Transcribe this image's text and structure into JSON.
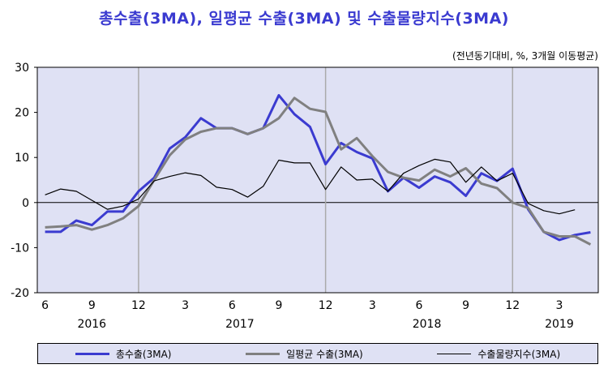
{
  "chart_data": {
    "type": "line",
    "title": "총수출(3MA), 일평균 수출(3MA) 및 수출물량지수(3MA)",
    "unit_note": "(전년동기대비, %, 3개월 이동평균)",
    "ylim": [
      -20,
      30
    ],
    "yticks": [
      "30",
      "20",
      "10",
      "0",
      "-10",
      "-20"
    ],
    "x_month_ticks": [
      "6",
      "9",
      "12",
      "3",
      "6",
      "9",
      "12",
      "3",
      "6",
      "9",
      "12",
      "3"
    ],
    "year_labels": [
      "2016",
      "2017",
      "2018",
      "2019"
    ],
    "x": [
      "2016-06",
      "2016-07",
      "2016-08",
      "2016-09",
      "2016-10",
      "2016-11",
      "2016-12",
      "2017-01",
      "2017-02",
      "2017-03",
      "2017-04",
      "2017-05",
      "2017-06",
      "2017-07",
      "2017-08",
      "2017-09",
      "2017-10",
      "2017-11",
      "2017-12",
      "2018-01",
      "2018-02",
      "2018-03",
      "2018-04",
      "2018-05",
      "2018-06",
      "2018-07",
      "2018-08",
      "2018-09",
      "2018-10",
      "2018-11",
      "2018-12",
      "2019-01",
      "2019-02",
      "2019-03",
      "2019-04",
      "2019-05"
    ],
    "series": [
      {
        "name": "총수출(3MA)",
        "color": "#3b3bd0",
        "values": [
          -6.5,
          -6.5,
          -4,
          -5,
          -2,
          -2,
          2.5,
          5.5,
          12,
          14.5,
          18.7,
          16.5,
          16.5,
          15.2,
          16.5,
          23.8,
          19.6,
          16.8,
          8.5,
          13.2,
          11.2,
          9.8,
          2.5,
          5.5,
          3.3,
          5.8,
          4.5,
          1.5,
          6.5,
          4.8,
          7.5,
          -1.5,
          -6.5,
          -8.3,
          -7.2,
          -6.6
        ]
      },
      {
        "name": "일평균 수출(3MA)",
        "color": "#808080",
        "values": [
          -5.5,
          -5.3,
          -5,
          -6,
          -5,
          -3.5,
          -0.8,
          5,
          10.5,
          14,
          15.7,
          16.5,
          16.5,
          15.2,
          16.5,
          18.7,
          23.2,
          20.8,
          20.1,
          11.8,
          14.3,
          10.3,
          6.8,
          5.5,
          4.9,
          7.3,
          5.8,
          7.6,
          4.2,
          3.2,
          0,
          -1.2,
          -6.5,
          -7.5,
          -7.5,
          -9.3
        ]
      },
      {
        "name": "수출물량지수(3MA)",
        "color": "#000000",
        "values": [
          1.7,
          3,
          2.5,
          0.5,
          -1.5,
          -0.8,
          0.8,
          4.8,
          5.8,
          6.6,
          6,
          3.4,
          2.9,
          1.2,
          3.6,
          9.4,
          8.8,
          8.8,
          2.9,
          7.9,
          5,
          5.2,
          2.5,
          6.5,
          8.2,
          9.6,
          9,
          4.5,
          7.9,
          4.8,
          6.5,
          -0.2,
          -1.8,
          -2.5,
          -1.6,
          null
        ]
      }
    ],
    "grid": true,
    "legend_position": "bottom"
  }
}
